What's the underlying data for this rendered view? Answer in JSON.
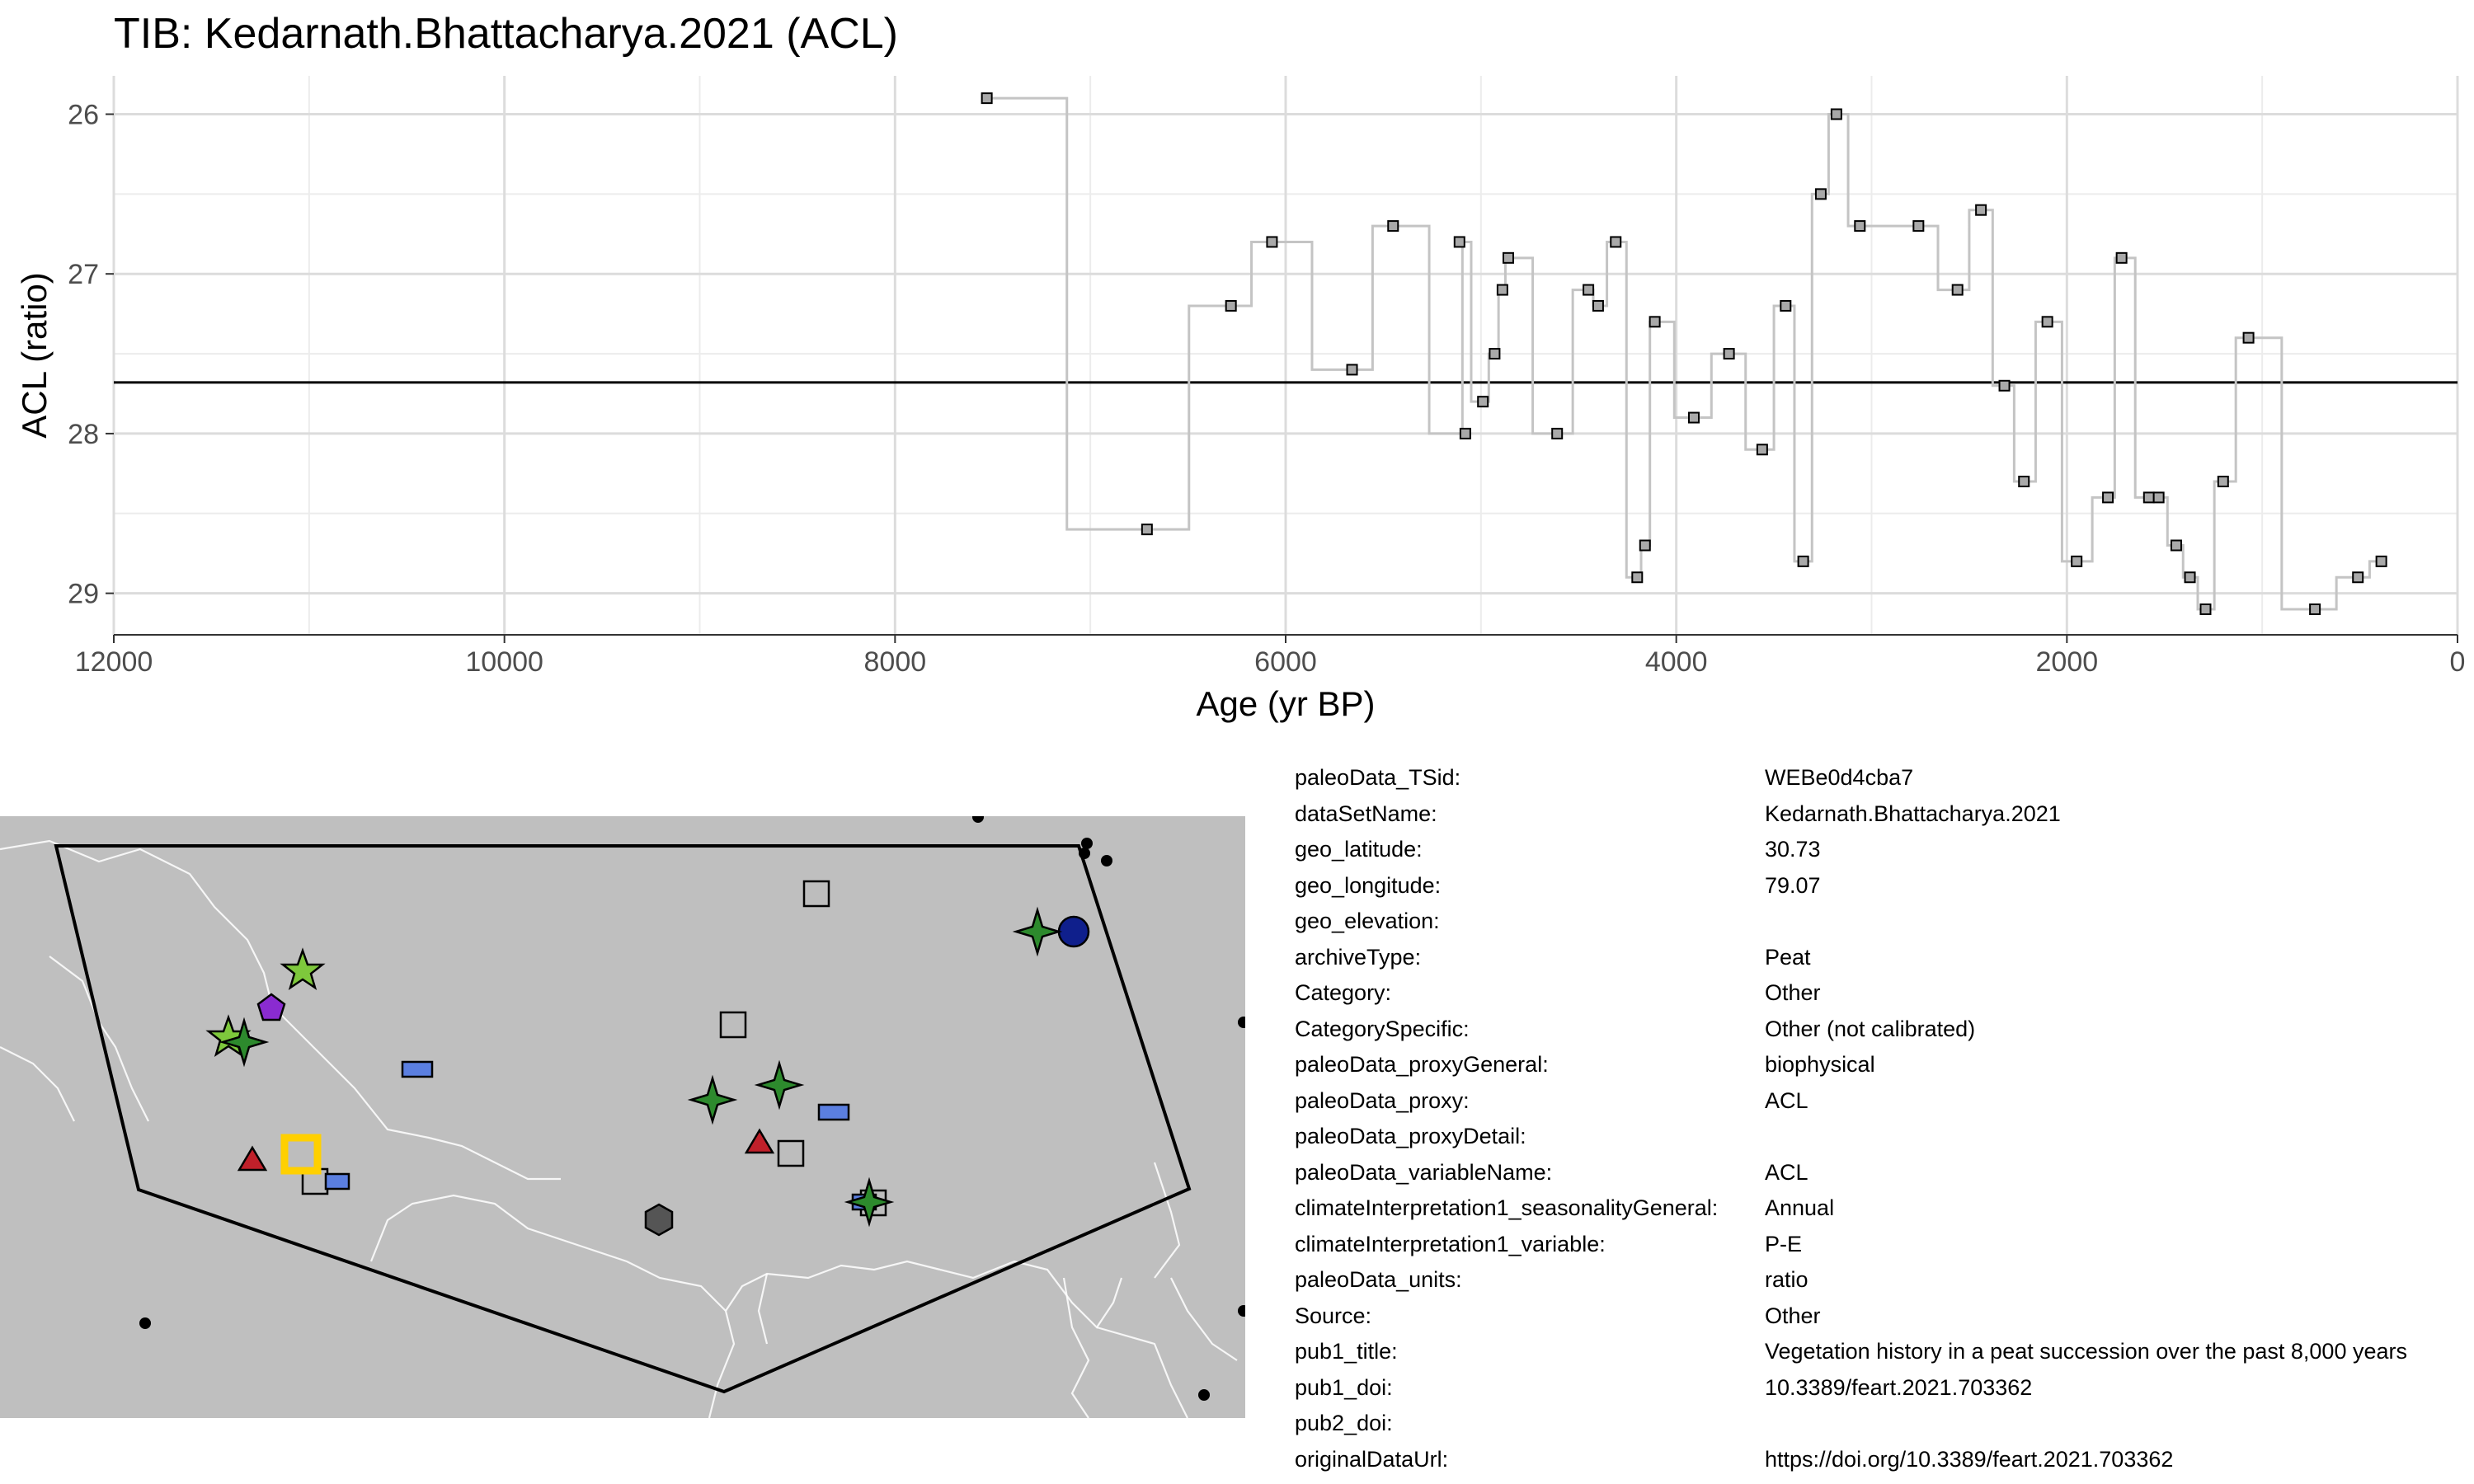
{
  "chart_data": {
    "type": "line",
    "title": "TIB: Kedarnath.Bhattacharya.2021 (ACL)",
    "xlabel": "Age (yr BP)",
    "ylabel": "ACL (ratio)",
    "xlim": [
      12000,
      0
    ],
    "ylim": [
      29.26,
      25.76
    ],
    "x_reversed": true,
    "y_reversed": true,
    "x_ticks": [
      12000,
      10000,
      8000,
      6000,
      4000,
      2000,
      0
    ],
    "y_ticks": [
      26,
      27,
      28,
      29
    ],
    "grid": true,
    "step_line": true,
    "mean_line": 27.68,
    "series": [
      {
        "x": [
          7530,
          6710,
          6280,
          6070,
          5660,
          5450,
          5080,
          5110,
          4990,
          4930,
          4890,
          4860,
          4610,
          4450,
          4400,
          4310,
          4200,
          4160,
          4110,
          3910,
          3730,
          3560,
          3440,
          3350,
          3260,
          3180,
          3060,
          2760,
          2560,
          2440,
          2320,
          2220,
          2100,
          1950,
          1790,
          1720,
          1580,
          1530,
          1440,
          1370,
          1290,
          1200,
          1070,
          730,
          510,
          390
        ],
        "y": [
          25.9,
          28.6,
          27.2,
          26.8,
          27.6,
          26.7,
          28.0,
          26.8,
          27.8,
          27.5,
          27.1,
          26.9,
          28.0,
          27.1,
          27.2,
          26.8,
          28.9,
          28.7,
          27.3,
          27.9,
          27.5,
          28.1,
          27.2,
          28.8,
          26.5,
          26.0,
          26.7,
          26.7,
          27.1,
          26.6,
          27.7,
          28.3,
          27.3,
          28.8,
          28.4,
          26.9,
          28.4,
          28.4,
          28.7,
          28.9,
          29.1,
          28.3,
          27.4,
          29.1,
          28.9,
          28.8
        ]
      }
    ]
  },
  "map": {
    "background_color": "#bfbfbf",
    "border_color": "#ffffff",
    "hull_color": "#000000",
    "highlight_color": "#ffd000",
    "legend": "none"
  },
  "metadata": [
    {
      "key": "paleoData_TSid:",
      "value": "WEBe0d4cba7"
    },
    {
      "key": "dataSetName:",
      "value": "Kedarnath.Bhattacharya.2021"
    },
    {
      "key": "geo_latitude:",
      "value": "30.73"
    },
    {
      "key": "geo_longitude:",
      "value": "79.07"
    },
    {
      "key": "geo_elevation:",
      "value": ""
    },
    {
      "key": "archiveType:",
      "value": "Peat"
    },
    {
      "key": "Category:",
      "value": "Other"
    },
    {
      "key": "CategorySpecific:",
      "value": "Other (not calibrated)"
    },
    {
      "key": "paleoData_proxyGeneral:",
      "value": "biophysical"
    },
    {
      "key": "paleoData_proxy:",
      "value": "ACL"
    },
    {
      "key": "paleoData_proxyDetail:",
      "value": ""
    },
    {
      "key": "paleoData_variableName:",
      "value": "ACL"
    },
    {
      "key": "climateInterpretation1_seasonalityGeneral:",
      "value": "Annual"
    },
    {
      "key": "climateInterpretation1_variable:",
      "value": "P-E"
    },
    {
      "key": "paleoData_units:",
      "value": "ratio"
    },
    {
      "key": "Source:",
      "value": "Other"
    },
    {
      "key": "pub1_title:",
      "value": "Vegetation history in a peat succession over the past 8,000 years"
    },
    {
      "key": "pub1_doi:",
      "value": "10.3389/feart.2021.703362"
    },
    {
      "key": "pub2_doi:",
      "value": ""
    },
    {
      "key": "originalDataUrl:",
      "value": "https://doi.org/10.3389/feart.2021.703362"
    }
  ]
}
